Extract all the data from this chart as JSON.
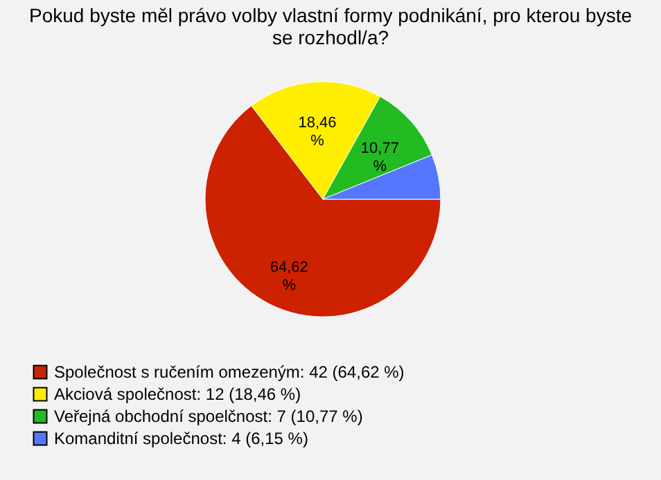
{
  "chart_data": {
    "type": "pie",
    "title": "Pokud byste měl právo volby vlastní formy podnikání, pro kterou byste se rozhodl/a?",
    "categories": [
      "Společnost s ručením omezeným: 42 (64,62 %)",
      "Akciová společnost: 12 (18,46 %)",
      "Veřejná obchodní spoelčnost: 7 (10,77 %)",
      "Komanditní společnost: 4 (6,15 %)"
    ],
    "values": [
      64.62,
      18.46,
      10.77,
      6.15
    ],
    "colors": [
      "#cc2200",
      "#ffee00",
      "#22bb22",
      "#5577ff"
    ],
    "value_labels": [
      "64,62 %",
      "18,46 %",
      "10,77 %",
      null
    ],
    "legend": "bottom left"
  }
}
